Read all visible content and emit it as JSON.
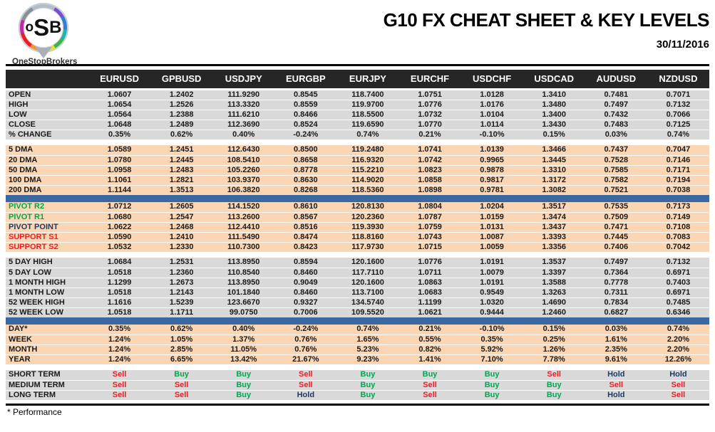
{
  "header": {
    "title": "G10 FX CHEAT SHEET & KEY LEVELS",
    "date": "30/11/2016"
  },
  "logo": {
    "o": "o",
    "s": "S",
    "b": "B",
    "brand": "OneStopBrokers"
  },
  "footer": {
    "note": "* Performance"
  },
  "colors": {
    "header_bg": "#262626",
    "gray_block": "#d9d9d9",
    "peach_block": "#fbd6b4",
    "blue_divider": "#3a68a2",
    "buy_green": "#00a650",
    "sell_red": "#ee1c25",
    "hold_navy": "#1f3864"
  },
  "table": {
    "columns": [
      "EURUSD",
      "GPBUSD",
      "USDJPY",
      "EURGBP",
      "EURJPY",
      "EURCHF",
      "USDCHF",
      "USDCAD",
      "AUDUSD",
      "NZDUSD"
    ],
    "blocks": [
      {
        "id": "ohlc",
        "bg": "gray",
        "signals": false,
        "separator_after": "gap",
        "rows": [
          {
            "label": "OPEN",
            "values": [
              "1.0607",
              "1.2402",
              "111.9290",
              "0.8545",
              "118.7400",
              "1.0751",
              "1.0128",
              "1.3410",
              "0.7481",
              "0.7071"
            ]
          },
          {
            "label": "HIGH",
            "values": [
              "1.0654",
              "1.2526",
              "113.3320",
              "0.8559",
              "119.9700",
              "1.0776",
              "1.0176",
              "1.3480",
              "0.7497",
              "0.7132"
            ]
          },
          {
            "label": "LOW",
            "values": [
              "1.0564",
              "1.2388",
              "111.6210",
              "0.8466",
              "118.5500",
              "1.0732",
              "1.0104",
              "1.3400",
              "0.7432",
              "0.7066"
            ]
          },
          {
            "label": "CLOSE",
            "values": [
              "1.0648",
              "1.2489",
              "112.3690",
              "0.8524",
              "119.6590",
              "1.0770",
              "1.0114",
              "1.3430",
              "0.7483",
              "0.7125"
            ]
          },
          {
            "label": "% CHANGE",
            "values": [
              "0.35%",
              "0.62%",
              "0.40%",
              "-0.24%",
              "0.74%",
              "0.21%",
              "-0.10%",
              "0.15%",
              "0.03%",
              "0.74%"
            ]
          }
        ]
      },
      {
        "id": "dma",
        "bg": "peach",
        "signals": false,
        "separator_after": "blue",
        "rows": [
          {
            "label": "5 DMA",
            "values": [
              "1.0589",
              "1.2451",
              "112.6430",
              "0.8500",
              "119.2480",
              "1.0741",
              "1.0139",
              "1.3466",
              "0.7437",
              "0.7047"
            ]
          },
          {
            "label": "20 DMA",
            "values": [
              "1.0780",
              "1.2445",
              "108.5410",
              "0.8658",
              "116.9320",
              "1.0742",
              "0.9965",
              "1.3445",
              "0.7528",
              "0.7146"
            ]
          },
          {
            "label": "50 DMA",
            "values": [
              "1.0958",
              "1.2483",
              "105.2260",
              "0.8778",
              "115.2210",
              "1.0823",
              "0.9878",
              "1.3310",
              "0.7585",
              "0.7171"
            ]
          },
          {
            "label": "100 DMA",
            "values": [
              "1.1061",
              "1.2821",
              "103.9370",
              "0.8630",
              "114.9020",
              "1.0858",
              "0.9817",
              "1.3172",
              "0.7582",
              "0.7194"
            ]
          },
          {
            "label": "200 DMA",
            "values": [
              "1.1144",
              "1.3513",
              "106.3820",
              "0.8268",
              "118.5360",
              "1.0898",
              "0.9781",
              "1.3082",
              "0.7521",
              "0.7038"
            ]
          }
        ]
      },
      {
        "id": "pivots",
        "bg": "peach",
        "signals": false,
        "separator_after": "gap",
        "rows": [
          {
            "label": "PIVOT R2",
            "label_color": "green",
            "values": [
              "1.0712",
              "1.2605",
              "114.1520",
              "0.8610",
              "120.8130",
              "1.0804",
              "1.0204",
              "1.3517",
              "0.7535",
              "0.7173"
            ]
          },
          {
            "label": "PIVOT R1",
            "label_color": "green",
            "values": [
              "1.0680",
              "1.2547",
              "113.2600",
              "0.8567",
              "120.2360",
              "1.0787",
              "1.0159",
              "1.3474",
              "0.7509",
              "0.7149"
            ]
          },
          {
            "label": "PIVOT POINT",
            "label_color": "navy",
            "values": [
              "1.0622",
              "1.2468",
              "112.4410",
              "0.8516",
              "119.3930",
              "1.0759",
              "1.0131",
              "1.3437",
              "0.7471",
              "0.7108"
            ]
          },
          {
            "label": "SUPPORT S1",
            "label_color": "red",
            "values": [
              "1.0590",
              "1.2410",
              "111.5490",
              "0.8474",
              "118.8160",
              "1.0743",
              "1.0087",
              "1.3393",
              "0.7445",
              "0.7083"
            ]
          },
          {
            "label": "SUPPORT S2",
            "label_color": "red",
            "values": [
              "1.0532",
              "1.2330",
              "110.7300",
              "0.8423",
              "117.9730",
              "1.0715",
              "1.0059",
              "1.3356",
              "0.7406",
              "0.7042"
            ]
          }
        ]
      },
      {
        "id": "ranges",
        "bg": "gray",
        "signals": false,
        "separator_after": "blue",
        "rows": [
          {
            "label": "5 DAY HIGH",
            "values": [
              "1.0684",
              "1.2531",
              "113.8950",
              "0.8594",
              "120.1600",
              "1.0776",
              "1.0191",
              "1.3537",
              "0.7497",
              "0.7132"
            ]
          },
          {
            "label": "5 DAY LOW",
            "values": [
              "1.0518",
              "1.2360",
              "110.8540",
              "0.8460",
              "117.7110",
              "1.0711",
              "1.0079",
              "1.3397",
              "0.7364",
              "0.6971"
            ]
          },
          {
            "label": "1 MONTH HIGH",
            "values": [
              "1.1299",
              "1.2673",
              "113.8950",
              "0.9049",
              "120.1600",
              "1.0863",
              "1.0191",
              "1.3588",
              "0.7778",
              "0.7403"
            ]
          },
          {
            "label": "1 MONTH LOW",
            "values": [
              "1.0518",
              "1.2143",
              "101.1840",
              "0.8460",
              "113.7100",
              "1.0683",
              "0.9549",
              "1.3263",
              "0.7311",
              "0.6971"
            ]
          },
          {
            "label": "52 WEEK HIGH",
            "values": [
              "1.1616",
              "1.5239",
              "123.6670",
              "0.9327",
              "134.5740",
              "1.1199",
              "1.0320",
              "1.4690",
              "0.7834",
              "0.7485"
            ]
          },
          {
            "label": "52 WEEK LOW",
            "values": [
              "1.0518",
              "1.1711",
              "99.0750",
              "0.7006",
              "109.5520",
              "1.0621",
              "0.9444",
              "1.2460",
              "0.6827",
              "0.6346"
            ]
          }
        ]
      },
      {
        "id": "performance",
        "bg": "peach",
        "signals": false,
        "separator_after": "gap",
        "rows": [
          {
            "label": "DAY*",
            "values": [
              "0.35%",
              "0.62%",
              "0.40%",
              "-0.24%",
              "0.74%",
              "0.21%",
              "-0.10%",
              "0.15%",
              "0.03%",
              "0.74%"
            ]
          },
          {
            "label": "WEEK",
            "values": [
              "1.24%",
              "1.05%",
              "1.37%",
              "0.76%",
              "1.65%",
              "0.55%",
              "0.35%",
              "0.25%",
              "1.61%",
              "2.20%"
            ]
          },
          {
            "label": "MONTH",
            "values": [
              "1.24%",
              "2.85%",
              "11.05%",
              "0.76%",
              "5.23%",
              "0.82%",
              "5.92%",
              "1.26%",
              "2.35%",
              "2.20%"
            ]
          },
          {
            "label": "YEAR",
            "values": [
              "1.24%",
              "6.65%",
              "13.42%",
              "21.67%",
              "9.23%",
              "1.41%",
              "7.10%",
              "7.78%",
              "9.61%",
              "12.26%"
            ]
          }
        ]
      },
      {
        "id": "signals",
        "bg": "gray",
        "signals": true,
        "separator_after": "none",
        "rows": [
          {
            "label": "SHORT TERM",
            "values": [
              "Sell",
              "Buy",
              "Buy",
              "Sell",
              "Buy",
              "Buy",
              "Buy",
              "Sell",
              "Hold",
              "Hold"
            ]
          },
          {
            "label": "MEDIUM TERM",
            "values": [
              "Sell",
              "Sell",
              "Buy",
              "Sell",
              "Buy",
              "Sell",
              "Buy",
              "Buy",
              "Sell",
              "Sell"
            ]
          },
          {
            "label": "LONG TERM",
            "values": [
              "Sell",
              "Sell",
              "Buy",
              "Hold",
              "Buy",
              "Sell",
              "Buy",
              "Buy",
              "Hold",
              "Sell"
            ]
          }
        ]
      }
    ]
  }
}
